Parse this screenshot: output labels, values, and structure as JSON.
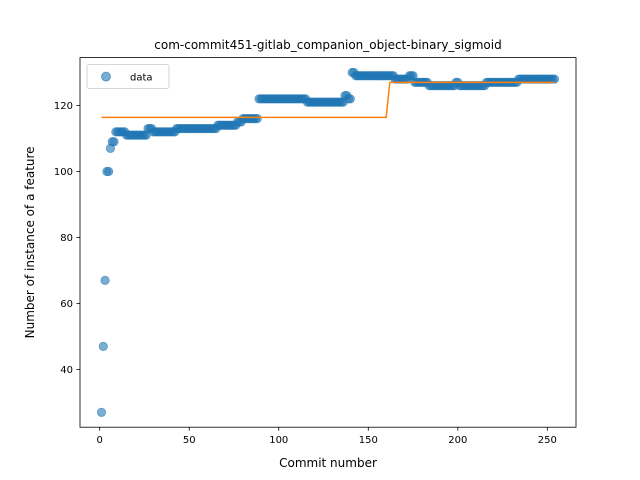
{
  "chart_data": {
    "type": "scatter",
    "title": "com-commit451-gitlab_companion_object-binary_sigmoid",
    "xlabel": "Commit number",
    "ylabel": "Number of instance of a feature",
    "xlim": [
      -11,
      266
    ],
    "ylim": [
      22.5,
      134.5
    ],
    "xticks": [
      0,
      50,
      100,
      150,
      200,
      250
    ],
    "yticks": [
      40,
      60,
      80,
      100,
      120
    ],
    "grid": false,
    "legend": {
      "position": "top-left",
      "entries": [
        "data"
      ]
    },
    "colors": {
      "data": "#1f77b4",
      "fit": "#ff7f0e"
    },
    "series": [
      {
        "name": "data",
        "kind": "scatter",
        "segments": [
          [
            1,
            1,
            27
          ],
          [
            2,
            2,
            47
          ],
          [
            3,
            3,
            67
          ],
          [
            4,
            5,
            100
          ],
          [
            6,
            6,
            107
          ],
          [
            7,
            8,
            109
          ],
          [
            9,
            14,
            112
          ],
          [
            15,
            26,
            111
          ],
          [
            27,
            29,
            113
          ],
          [
            30,
            42,
            112
          ],
          [
            43,
            65,
            113
          ],
          [
            66,
            76,
            114
          ],
          [
            77,
            79,
            115
          ],
          [
            80,
            88,
            116
          ],
          [
            89,
            115,
            122
          ],
          [
            116,
            136,
            121
          ],
          [
            137,
            138,
            123
          ],
          [
            139,
            140,
            122
          ],
          [
            141,
            142,
            130
          ],
          [
            143,
            158,
            129
          ],
          [
            159,
            164,
            129
          ],
          [
            165,
            166,
            128
          ],
          [
            167,
            172,
            128
          ],
          [
            173,
            175,
            129
          ],
          [
            176,
            183,
            127
          ],
          [
            184,
            195,
            126
          ],
          [
            196,
            198,
            126
          ],
          [
            199,
            200,
            127
          ],
          [
            201,
            213,
            126
          ],
          [
            214,
            215,
            126
          ],
          [
            216,
            233,
            127
          ],
          [
            234,
            254,
            128
          ]
        ]
      },
      {
        "name": "",
        "kind": "line",
        "points": [
          [
            1,
            116.4
          ],
          [
            160,
            116.4
          ],
          [
            162,
            127
          ],
          [
            254,
            127
          ]
        ]
      }
    ]
  }
}
